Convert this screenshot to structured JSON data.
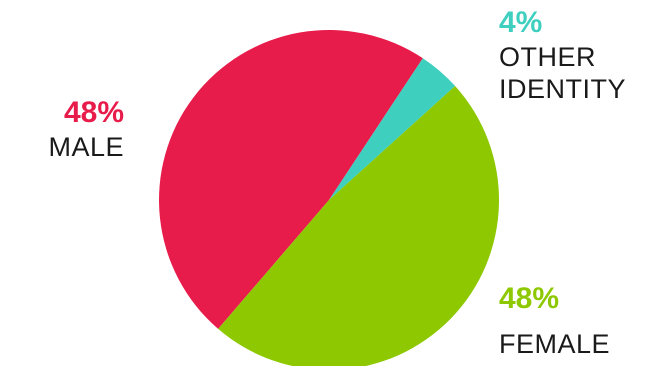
{
  "chart_data": {
    "type": "pie",
    "title": "",
    "slices": [
      {
        "label": "MALE",
        "value": 48,
        "value_label": "48%",
        "color": "#e81c4b"
      },
      {
        "label": "OTHER IDENTITY",
        "label_lines": [
          "OTHER",
          "IDENTITY"
        ],
        "value": 4,
        "value_label": "4%",
        "color": "#3ecfbf"
      },
      {
        "label": "FEMALE",
        "value": 48,
        "value_label": "48%",
        "color": "#8dc800"
      }
    ],
    "legend": "none",
    "labels_placement": "outside"
  }
}
